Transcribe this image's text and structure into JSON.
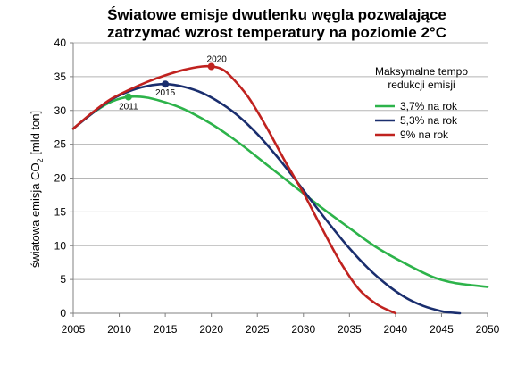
{
  "chart_data": {
    "type": "line",
    "title_line1": "Światowe emisje dwutlenku węgla pozwalające",
    "title_line2": "zatrzymać wzrost temperatury na poziomie 2°C",
    "ylabel_main": "światowa emisja CO",
    "ylabel_sub": "2",
    "ylabel_tail": " [mld ton]",
    "xlim": [
      2005,
      2050
    ],
    "ylim": [
      0,
      40
    ],
    "x_ticks": [
      "2005",
      "2010",
      "2015",
      "2020",
      "2025",
      "2030",
      "2035",
      "2040",
      "2045",
      "2050"
    ],
    "y_ticks": [
      "0",
      "5",
      "10",
      "15",
      "20",
      "25",
      "30",
      "35",
      "40"
    ],
    "grid": "horizontal",
    "legend_title_line1": "Maksymalne tempo",
    "legend_title_line2": "redukcji emisji",
    "legend_position": "top-right",
    "series": [
      {
        "name": "3,7% na rok",
        "color": "#2db34a",
        "x": [
          2005,
          2007,
          2009,
          2011,
          2013,
          2015,
          2017,
          2020,
          2023,
          2026,
          2029,
          2032,
          2035,
          2038,
          2041,
          2044,
          2046,
          2048,
          2050
        ],
        "y": [
          27.3,
          29.5,
          31.2,
          32.0,
          31.9,
          31.2,
          30.2,
          28.0,
          25.2,
          22.0,
          18.8,
          15.6,
          12.6,
          9.7,
          7.4,
          5.4,
          4.6,
          4.2,
          3.9
        ]
      },
      {
        "name": "5,3% na rok",
        "color": "#1a2e6e",
        "x": [
          2005,
          2007,
          2009,
          2011,
          2013,
          2015,
          2017,
          2019,
          2021,
          2023,
          2025,
          2027,
          2029,
          2031,
          2033,
          2035,
          2037,
          2039,
          2041,
          2043,
          2045,
          2046,
          2047
        ],
        "y": [
          27.3,
          29.5,
          31.5,
          32.8,
          33.6,
          33.9,
          33.5,
          32.6,
          31.1,
          29.1,
          26.5,
          23.4,
          20.0,
          16.4,
          12.9,
          9.6,
          6.7,
          4.3,
          2.4,
          1.1,
          0.3,
          0.1,
          0.0
        ]
      },
      {
        "name": "9% na rok",
        "color": "#c0221f",
        "x": [
          2005,
          2007,
          2009,
          2011,
          2013,
          2015,
          2017,
          2019,
          2020,
          2021,
          2022,
          2024,
          2026,
          2028,
          2030,
          2032,
          2034,
          2036,
          2038,
          2040
        ],
        "y": [
          27.3,
          29.6,
          31.6,
          33.0,
          34.2,
          35.2,
          36.0,
          36.5,
          36.5,
          36.2,
          35.2,
          32.0,
          27.5,
          22.5,
          17.8,
          12.6,
          7.6,
          3.6,
          1.3,
          0.0
        ]
      }
    ],
    "annotations": [
      {
        "label": "2011",
        "x": 2011,
        "y": 32.0,
        "color": "#2db34a"
      },
      {
        "label": "2015",
        "x": 2015,
        "y": 33.9,
        "color": "#1a2e6e"
      },
      {
        "label": "2020",
        "x": 2020,
        "y": 36.5,
        "color": "#c0221f"
      }
    ]
  }
}
